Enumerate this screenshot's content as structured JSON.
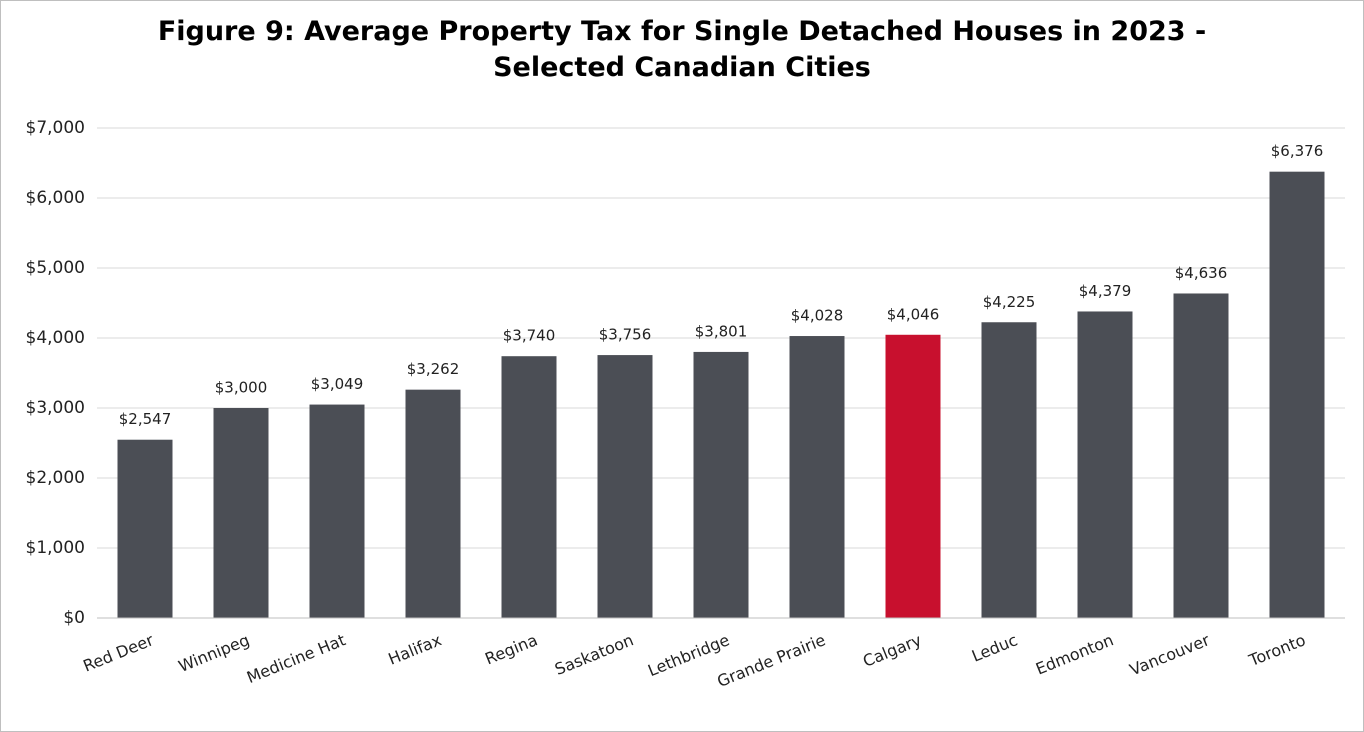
{
  "chart_data": {
    "type": "bar",
    "title": "Figure 9: Average Property Tax for Single Detached Houses in 2023 - Selected Canadian Cities",
    "categories": [
      "Red Deer",
      "Winnipeg",
      "Medicine Hat",
      "Halifax",
      "Regina",
      "Saskatoon",
      "Lethbridge",
      "Grande Prairie",
      "Calgary",
      "Leduc",
      "Edmonton",
      "Vancouver",
      "Toronto"
    ],
    "values": [
      2547,
      3000,
      3049,
      3262,
      3740,
      3756,
      3801,
      4028,
      4046,
      4225,
      4379,
      4636,
      6376
    ],
    "value_labels": [
      "$2,547",
      "$3,000",
      "$3,049",
      "$3,262",
      "$3,740",
      "$3,756",
      "$3,801",
      "$4,028",
      "$4,046",
      "$4,225",
      "$4,379",
      "$4,636",
      "$6,376"
    ],
    "colors": [
      "#4b4e55",
      "#4b4e55",
      "#4b4e55",
      "#4b4e55",
      "#4b4e55",
      "#4b4e55",
      "#4b4e55",
      "#4b4e55",
      "#c8102e",
      "#4b4e55",
      "#4b4e55",
      "#4b4e55",
      "#4b4e55"
    ],
    "ylim": [
      0,
      7000
    ],
    "yticks": [
      {
        "value": 0,
        "label": "$0"
      },
      {
        "value": 1000,
        "label": "$1,000"
      },
      {
        "value": 2000,
        "label": "$2,000"
      },
      {
        "value": 3000,
        "label": "$3,000"
      },
      {
        "value": 4000,
        "label": "$4,000"
      },
      {
        "value": 5000,
        "label": "$5,000"
      },
      {
        "value": 6000,
        "label": "$6,000"
      },
      {
        "value": 7000,
        "label": "$7,000"
      }
    ],
    "grid": true
  }
}
